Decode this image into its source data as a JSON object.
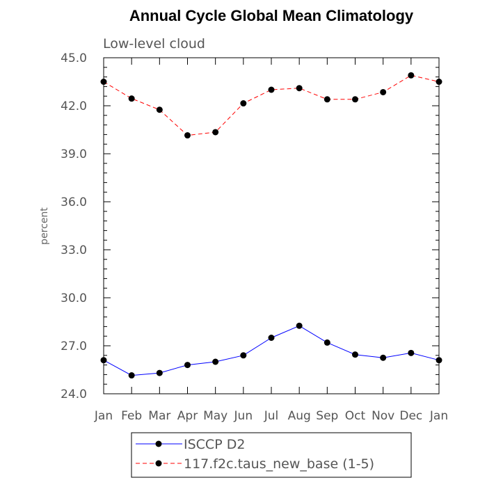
{
  "chart_data": {
    "type": "line",
    "title": "Annual Cycle Global Mean Climatology",
    "subtitle": "Low-level cloud",
    "xlabel": "",
    "ylabel": "percent",
    "categories": [
      "Jan",
      "Feb",
      "Mar",
      "Apr",
      "May",
      "Jun",
      "Jul",
      "Aug",
      "Sep",
      "Oct",
      "Nov",
      "Dec",
      "Jan"
    ],
    "ylim": [
      24.0,
      45.0
    ],
    "yticks": [
      "24.0",
      "27.0",
      "30.0",
      "33.0",
      "36.0",
      "39.0",
      "42.0",
      "45.0"
    ],
    "grid": false,
    "legend_position": "bottom",
    "series": [
      {
        "name": "ISCCP D2",
        "color": "#0000ff",
        "dash": "solid",
        "values": [
          26.1,
          25.15,
          25.3,
          25.8,
          26.0,
          26.4,
          27.5,
          28.25,
          27.2,
          26.45,
          26.25,
          26.55,
          26.1
        ]
      },
      {
        "name": "117.f2c.taus_new_base (1-5)",
        "color": "#ff0000",
        "dash": "dashed",
        "values": [
          43.5,
          42.45,
          41.75,
          40.15,
          40.35,
          42.15,
          43.0,
          43.1,
          42.4,
          42.4,
          42.85,
          43.9,
          43.5
        ]
      }
    ]
  }
}
